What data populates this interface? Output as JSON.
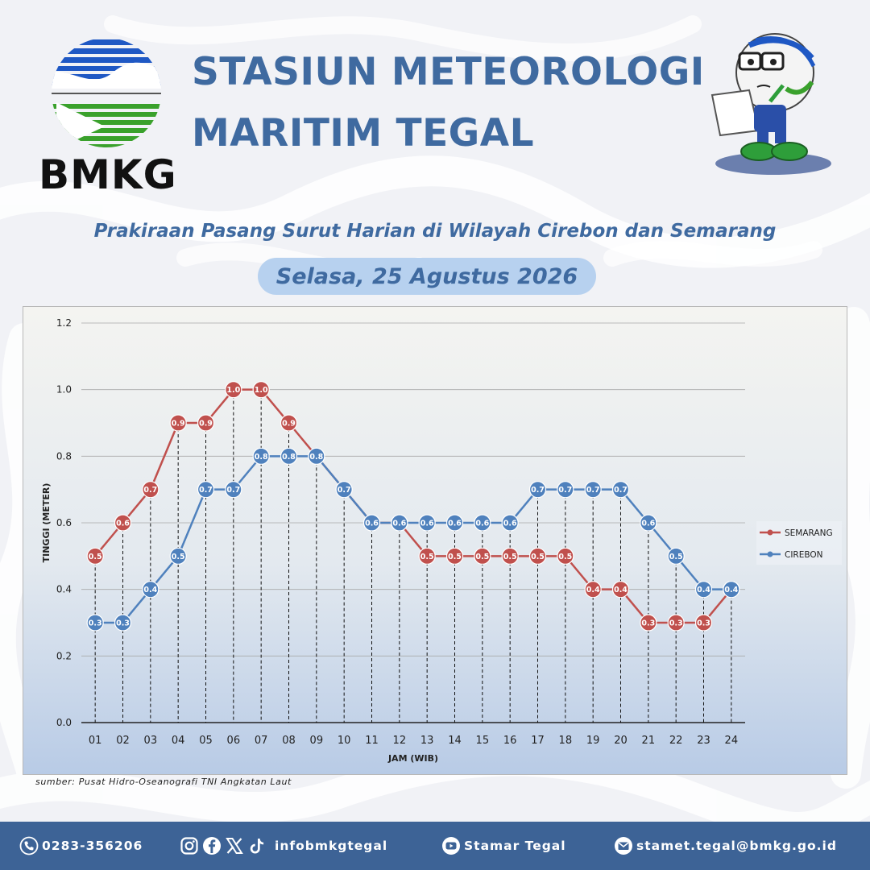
{
  "header": {
    "logo_text": "BMKG",
    "title_line1": "STASIUN METEOROLOGI",
    "title_line2": "MARITIM TEGAL",
    "subtitle": "Prakiraan Pasang Surut Harian di Wilayah Cirebon dan Semarang",
    "date": "Selasa, 25 Agustus 2026"
  },
  "colors": {
    "brand_blue": "#3f6aa0",
    "semarang": "#c0504d",
    "cirebon": "#4f81bd",
    "footer": "#3d6396",
    "pill": "#b7d1ef"
  },
  "chart_data": {
    "type": "line",
    "xlabel": "JAM (WIB)",
    "ylabel": "TINGGI (METER)",
    "categories": [
      "01",
      "02",
      "03",
      "04",
      "05",
      "06",
      "07",
      "08",
      "09",
      "10",
      "11",
      "12",
      "13",
      "14",
      "15",
      "16",
      "17",
      "18",
      "19",
      "20",
      "21",
      "22",
      "23",
      "24"
    ],
    "ylim": [
      0,
      1.2
    ],
    "yticks": [
      "0.0",
      "0.2",
      "0.4",
      "0.6",
      "0.8",
      "1.0",
      "1.2"
    ],
    "grid": true,
    "legend_position": "right",
    "series": [
      {
        "name": "SEMARANG",
        "color": "#c0504d",
        "values": [
          0.5,
          0.6,
          0.7,
          0.9,
          0.9,
          1.0,
          1.0,
          0.9,
          0.8,
          0.7,
          0.6,
          0.6,
          0.5,
          0.5,
          0.5,
          0.5,
          0.5,
          0.5,
          0.4,
          0.4,
          0.3,
          0.3,
          0.3,
          0.4
        ]
      },
      {
        "name": "CIREBON",
        "color": "#4f81bd",
        "values": [
          0.3,
          0.3,
          0.4,
          0.5,
          0.7,
          0.7,
          0.8,
          0.8,
          0.8,
          0.7,
          0.6,
          0.6,
          0.6,
          0.6,
          0.6,
          0.6,
          0.7,
          0.7,
          0.7,
          0.7,
          0.6,
          0.5,
          0.4,
          0.4
        ]
      }
    ]
  },
  "source": "sumber: Pusat Hidro-Oseanografi TNI Angkatan Laut",
  "footer": {
    "phone": "0283-356206",
    "social": "infobmkgtegal",
    "youtube": "Stamar Tegal",
    "email": "stamet.tegal@bmkg.go.id"
  },
  "icons": {
    "phone": "phone-icon",
    "instagram": "instagram-icon",
    "facebook": "facebook-icon",
    "x": "x-icon",
    "tiktok": "tiktok-icon",
    "youtube": "youtube-icon",
    "email": "email-icon"
  }
}
